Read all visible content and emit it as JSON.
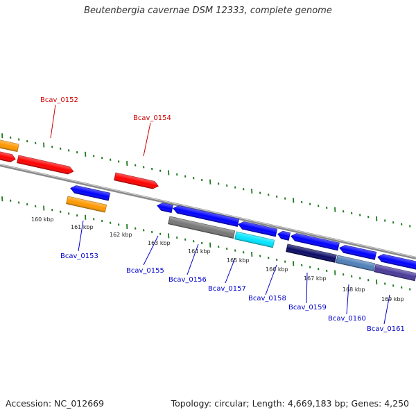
{
  "header": {
    "title": "Beutenbergia cavernae DSM 12333, complete genome"
  },
  "footer": {
    "accession": "Accession: NC_012669",
    "topology": "Topology: circular; Length: 4,669,183 bp; Genes: 4,250"
  },
  "colors": {
    "forward_tick": "#1f7a1f",
    "reverse_tick": "#1f7a1f",
    "backbone": "#8a8a8a",
    "label_forward": "#cc0000",
    "label_reverse": "#0000cc",
    "bp_label": "#222222"
  },
  "scale_labels": [
    "160 kbp",
    "161 kbp",
    "162 kbp",
    "163 kbp",
    "164 kbp",
    "165 kbp",
    "166 kbp",
    "167 kbp",
    "168 kbp",
    "169 kbp"
  ],
  "gene_labels": [
    {
      "text": "Bcav_0152",
      "strand": "forward"
    },
    {
      "text": "Bcav_0154",
      "strand": "forward"
    },
    {
      "text": "Bcav_0153",
      "strand": "reverse"
    },
    {
      "text": "Bcav_0155",
      "strand": "reverse"
    },
    {
      "text": "Bcav_0156",
      "strand": "reverse"
    },
    {
      "text": "Bcav_0157",
      "strand": "reverse"
    },
    {
      "text": "Bcav_0158",
      "strand": "reverse"
    },
    {
      "text": "Bcav_0159",
      "strand": "reverse"
    },
    {
      "text": "Bcav_0160",
      "strand": "reverse"
    },
    {
      "text": "Bcav_0161",
      "strand": "reverse"
    }
  ],
  "features": [
    {
      "id": "f_orange_top_left",
      "color": "#ff9900",
      "dir": "forward"
    },
    {
      "id": "f_red_left",
      "color": "#ff0000",
      "dir": "forward"
    },
    {
      "id": "f_red_0152",
      "color": "#ff0000",
      "dir": "forward"
    },
    {
      "id": "f_red_0154",
      "color": "#ff0000",
      "dir": "forward"
    },
    {
      "id": "f_blue_0153",
      "color": "#0000ff",
      "dir": "reverse"
    },
    {
      "id": "f_orange_0153",
      "color": "#ff9900",
      "dir": "none"
    },
    {
      "id": "f_blue_0155",
      "color": "#0000ff",
      "dir": "reverse"
    },
    {
      "id": "f_blue_0156",
      "color": "#0000ff",
      "dir": "reverse"
    },
    {
      "id": "f_gray_0156",
      "color": "#777777",
      "dir": "none"
    },
    {
      "id": "f_cyan_0157",
      "color": "#00e5ff",
      "dir": "none"
    },
    {
      "id": "f_blue_0157",
      "color": "#0000ff",
      "dir": "reverse"
    },
    {
      "id": "f_blue_0158",
      "color": "#0000ff",
      "dir": "reverse"
    },
    {
      "id": "f_blue_0159",
      "color": "#0000ff",
      "dir": "reverse"
    },
    {
      "id": "f_navy_0159",
      "color": "#0a0a66",
      "dir": "none"
    },
    {
      "id": "f_blue_0160",
      "color": "#0000ff",
      "dir": "reverse"
    },
    {
      "id": "f_steel_0160",
      "color": "#4f80b8",
      "dir": "none"
    },
    {
      "id": "f_blue_0161",
      "color": "#0000ff",
      "dir": "reverse"
    },
    {
      "id": "f_purple_0161",
      "color": "#4a3a9a",
      "dir": "none"
    }
  ]
}
